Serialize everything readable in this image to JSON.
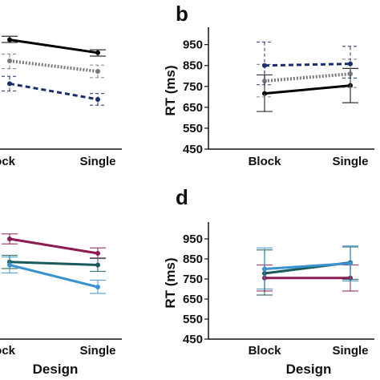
{
  "chart_data": [
    {
      "id": "a",
      "type": "line",
      "panel_label": "",
      "categories": [
        "Block",
        "Single"
      ],
      "category_labels": [
        "lock",
        "Single"
      ],
      "xlabel": "",
      "ylabel": "",
      "series": [
        {
          "style": "solid",
          "color": "#000000",
          "values": [
            973,
            911
          ],
          "err": [
            [
              960,
              990
            ],
            [
              895,
              925
            ]
          ]
        },
        {
          "style": "dotted",
          "color": "#7a7a7a",
          "values": [
            872,
            822
          ],
          "err": [
            [
              835,
              905
            ],
            [
              792,
              852
            ]
          ]
        },
        {
          "style": "dashed",
          "color": "#1a2e6e",
          "values": [
            763,
            688
          ],
          "err": [
            [
              728,
              798
            ],
            [
              660,
              716
            ]
          ]
        }
      ]
    },
    {
      "id": "b",
      "type": "line",
      "panel_label": "b",
      "categories": [
        "Block",
        "Single"
      ],
      "category_labels": [
        "Block",
        "Single"
      ],
      "xlabel": "",
      "ylabel": "RT (ms)",
      "ylim": [
        450,
        1010
      ],
      "yticks": [
        450,
        550,
        650,
        750,
        850,
        950
      ],
      "series": [
        {
          "style": "solid",
          "color": "#000000",
          "values": [
            716,
            754
          ],
          "err": [
            [
              630,
              805
            ],
            [
              672,
              836
            ]
          ]
        },
        {
          "style": "dotted",
          "color": "#7a7a7a",
          "values": [
            776,
            810
          ],
          "err": [
            [
              700,
              855
            ],
            [
              745,
              880
            ]
          ]
        },
        {
          "style": "dashed",
          "color": "#1a2e6e",
          "values": [
            850,
            858
          ],
          "err": [
            [
              758,
              962
            ],
            [
              790,
              942
            ]
          ]
        }
      ]
    },
    {
      "id": "c",
      "type": "line",
      "panel_label": "",
      "categories": [
        "Block",
        "Single"
      ],
      "category_labels": [
        "lock",
        "Single"
      ],
      "xlabel": "Design",
      "ylabel": "",
      "series": [
        {
          "style": "solid",
          "color": "#8b1a55",
          "values": [
            950,
            878
          ],
          "err": [
            [
              925,
              975
            ],
            [
              855,
              905
            ]
          ]
        },
        {
          "style": "solid",
          "color": "#1a5a5a",
          "values": [
            835,
            820
          ],
          "err": [
            [
              802,
              868
            ],
            [
              788,
              852
            ]
          ]
        },
        {
          "style": "solid",
          "color": "#3a92d2",
          "values": [
            820,
            710
          ],
          "err": [
            [
              780,
              860
            ],
            [
              678,
              744
            ]
          ]
        }
      ]
    },
    {
      "id": "d",
      "type": "line",
      "panel_label": "d",
      "categories": [
        "Block",
        "Single"
      ],
      "category_labels": [
        "Block",
        "Single"
      ],
      "xlabel": "Design",
      "ylabel": "RT (ms)",
      "ylim": [
        450,
        1010
      ],
      "yticks": [
        450,
        550,
        650,
        750,
        850,
        950
      ],
      "series": [
        {
          "style": "solid",
          "color": "#8b1a55",
          "values": [
            755,
            755
          ],
          "err": [
            [
              690,
              820
            ],
            [
              690,
              820
            ]
          ]
        },
        {
          "style": "solid",
          "color": "#1a5a5a",
          "values": [
            778,
            832
          ],
          "err": [
            [
              670,
              895
            ],
            [
              748,
              910
            ]
          ]
        },
        {
          "style": "solid",
          "color": "#3a92d2",
          "values": [
            800,
            828
          ],
          "err": [
            [
              700,
              905
            ],
            [
              740,
              915
            ]
          ]
        }
      ]
    }
  ]
}
